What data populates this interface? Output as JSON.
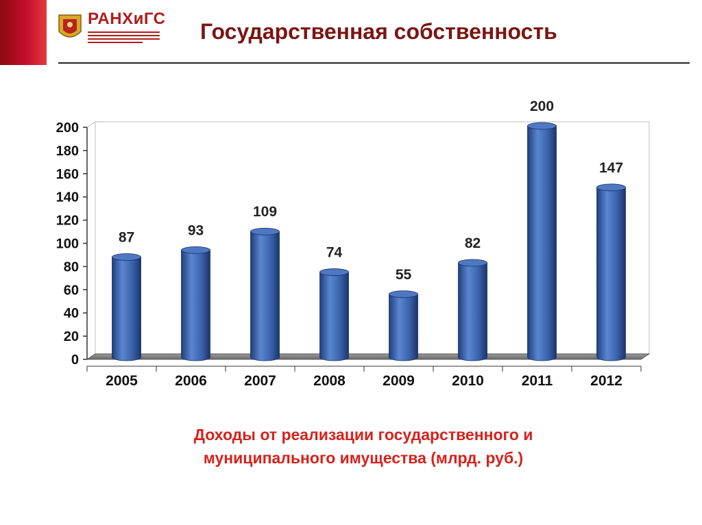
{
  "header": {
    "logo_text": "РАНХиГС",
    "title": "Государственная собственность"
  },
  "colors": {
    "accent_red": "#c8102e",
    "title_color": "#7a1512",
    "bar_blue": "#3a63ad",
    "caption_red": "#d6221c"
  },
  "caption": {
    "line1": "Доходы от реализации государственного и",
    "line2": "муниципального имущества (млрд. руб.)"
  },
  "chart_data": {
    "type": "bar",
    "categories": [
      "2005",
      "2006",
      "2007",
      "2008",
      "2009",
      "2010",
      "2011",
      "2012"
    ],
    "values": [
      87,
      93,
      109,
      74,
      55,
      82,
      200,
      147
    ],
    "data_labels": [
      "87",
      "93",
      "109",
      "74",
      "55",
      "82",
      "200",
      "147"
    ],
    "yticks": [
      "0",
      "20",
      "40",
      "60",
      "80",
      "100",
      "120",
      "140",
      "160",
      "180",
      "200"
    ],
    "ylim": [
      0,
      200
    ],
    "grid": false,
    "legend": "none",
    "style": "3d-cylinder"
  }
}
